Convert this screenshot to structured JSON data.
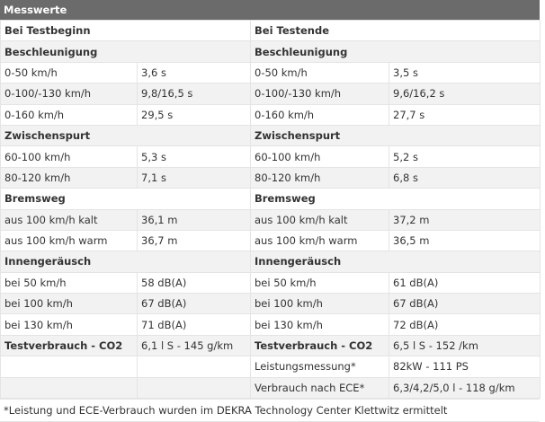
{
  "title": "Messwerte",
  "colors": {
    "title_bg": "#6b6b6b",
    "row_alt": "#f2f2f2",
    "border": "#e4e4e4"
  },
  "rows": [
    {
      "type": "header",
      "left": "Bei Testbeginn",
      "right": "Bei Testende"
    },
    {
      "type": "section",
      "left": "Beschleunigung",
      "right": "Beschleunigung"
    },
    {
      "type": "data",
      "lk": "0-50 km/h",
      "lv": "3,6 s",
      "rk": "0-50 km/h",
      "rv": "3,5 s"
    },
    {
      "type": "data",
      "lk": "0-100/-130 km/h",
      "lv": "9,8/16,5 s",
      "rk": "0-100/-130 km/h",
      "rv": "9,6/16,2 s"
    },
    {
      "type": "data",
      "lk": "0-160 km/h",
      "lv": "29,5 s",
      "rk": "0-160 km/h",
      "rv": "27,7 s"
    },
    {
      "type": "section",
      "left": "Zwischenspurt",
      "right": "Zwischenspurt"
    },
    {
      "type": "data",
      "lk": "60-100 km/h",
      "lv": "5,3 s",
      "rk": "60-100 km/h",
      "rv": "5,2 s"
    },
    {
      "type": "data",
      "lk": "80-120 km/h",
      "lv": "7,1 s",
      "rk": "80-120 km/h",
      "rv": "6,8 s"
    },
    {
      "type": "section",
      "left": "Bremsweg",
      "right": "Bremsweg"
    },
    {
      "type": "data",
      "lk": "aus 100 km/h kalt",
      "lv": "36,1 m",
      "rk": "aus 100 km/h kalt",
      "rv": "37,2 m"
    },
    {
      "type": "data",
      "lk": "aus 100 km/h warm",
      "lv": "36,7 m",
      "rk": "aus 100 km/h warm",
      "rv": "36,5 m"
    },
    {
      "type": "section",
      "left": "Innengeräusch",
      "right": "Innengeräusch"
    },
    {
      "type": "data",
      "lk": "bei 50 km/h",
      "lv": "58 dB(A)",
      "rk": "bei 50 km/h",
      "rv": "61 dB(A)"
    },
    {
      "type": "data",
      "lk": "bei 100 km/h",
      "lv": "67 dB(A)",
      "rk": "bei 100 km/h",
      "rv": "67 dB(A)"
    },
    {
      "type": "data",
      "lk": "bei 130 km/h",
      "lv": "71 dB(A)",
      "rk": "bei 130 km/h",
      "rv": "72 dB(A)"
    },
    {
      "type": "consumption",
      "lk": "Testverbrauch - CO2",
      "lv": "6,1 l S - 145 g/km",
      "rk": "Testverbrauch - CO2",
      "rv": "6,5 l S - 152 /km"
    },
    {
      "type": "data",
      "lk": "",
      "lv": "",
      "rk": "Leistungsmessung*",
      "rv": "82kW - 111 PS"
    },
    {
      "type": "data",
      "lk": "",
      "lv": "",
      "rk": "Verbrauch nach ECE*",
      "rv": "6,3/4,2/5,0 l - 118 g/km"
    }
  ],
  "footnote": "*Leistung und ECE-Verbrauch wurden im DEKRA Technology Center Klettwitz ermittelt"
}
